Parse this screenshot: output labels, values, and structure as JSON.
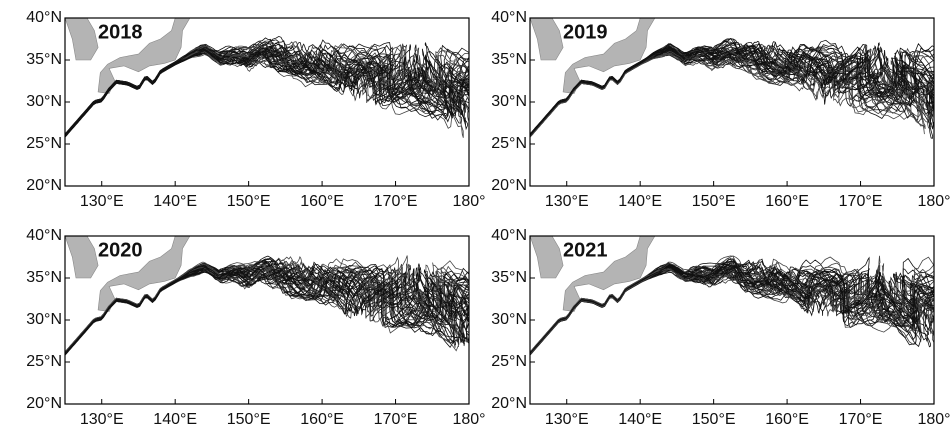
{
  "panels": [
    {
      "title": "2018"
    },
    {
      "title": "2019"
    },
    {
      "title": "2020"
    },
    {
      "title": "2021"
    }
  ],
  "xaxis": {
    "lim": [
      125,
      180
    ],
    "ticks": [
      {
        "value": 130,
        "label": "130°E"
      },
      {
        "value": 140,
        "label": "140°E"
      },
      {
        "value": 150,
        "label": "150°E"
      },
      {
        "value": 160,
        "label": "160°E"
      },
      {
        "value": 170,
        "label": "170°E"
      },
      {
        "value": 180,
        "label": "180°"
      }
    ]
  },
  "yaxis": {
    "lim": [
      20,
      40
    ],
    "ticks": [
      {
        "value": 20,
        "label": "20°N"
      },
      {
        "value": 25,
        "label": "25°N"
      },
      {
        "value": 30,
        "label": "30°N"
      },
      {
        "value": 35,
        "label": "35°N"
      },
      {
        "value": 40,
        "label": "40°N"
      }
    ]
  }
}
